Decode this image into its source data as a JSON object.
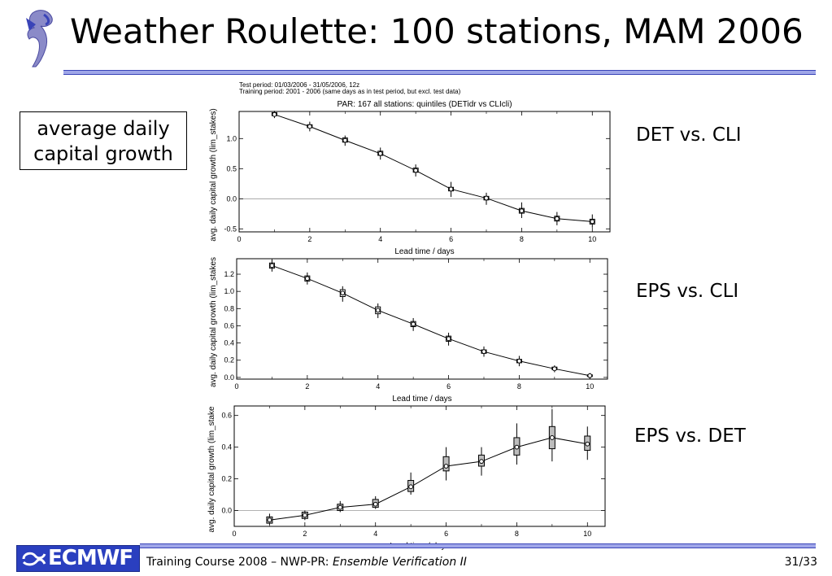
{
  "slide": {
    "title": "Weather Roulette: 100 stations, MAM 2006",
    "note_line1": "average daily",
    "note_line2": "capital growth",
    "label_det_cli": "DET vs. CLI",
    "label_eps_cli": "EPS vs. CLI",
    "label_eps_det": "EPS vs. DET"
  },
  "header": {
    "test_period": "Test period: 01/03/2006 - 31/05/2006, 12z",
    "training_period": "Training period: 2001 - 2006 (same days as in test period, but excl. test data)"
  },
  "footer": {
    "logo_text": "ECMWF",
    "course_text": "Training Course 2008 – NWP-PR: ",
    "course_italic": "Ensemble Verification II",
    "page": "31/33"
  },
  "colors": {
    "rule": "#9fa6e8",
    "rule_border": "#3a44b8",
    "logo_bg": "#2a3fbf"
  },
  "chart_data": [
    {
      "type": "line",
      "title": "PAR: 167 all stations: quintiles (DETidr vs CLIcli)",
      "xlabel": "Lead time / days",
      "ylabel": "avg. daily capital growth (lim_stakes)",
      "xlim": [
        0,
        10.5
      ],
      "ylim": [
        -0.55,
        1.45
      ],
      "xticks": [
        0,
        2,
        4,
        6,
        8,
        10
      ],
      "yticks": [
        -0.5,
        0.0,
        0.5,
        1.0
      ],
      "ytick_labels": [
        "-0.5",
        "0.0",
        "0.5",
        "1.0"
      ],
      "zero_line": true,
      "x": [
        1,
        2,
        3,
        4,
        5,
        6,
        7,
        8,
        9,
        10
      ],
      "y": [
        1.4,
        1.2,
        0.97,
        0.75,
        0.47,
        0.16,
        0.01,
        -0.2,
        -0.33,
        -0.38
      ],
      "err_low": [
        1.34,
        1.12,
        0.88,
        0.65,
        0.37,
        0.03,
        -0.1,
        -0.32,
        -0.44,
        -0.48
      ],
      "err_high": [
        1.46,
        1.28,
        1.05,
        0.85,
        0.57,
        0.28,
        0.1,
        -0.06,
        -0.22,
        -0.26
      ],
      "box_low": [
        1.38,
        1.18,
        0.94,
        0.72,
        0.44,
        0.13,
        -0.02,
        -0.24,
        -0.37,
        -0.42
      ],
      "box_high": [
        1.43,
        1.23,
        1.01,
        0.79,
        0.51,
        0.19,
        0.04,
        -0.16,
        -0.29,
        -0.34
      ]
    },
    {
      "type": "line",
      "title": "",
      "xlabel": "Lead time / days",
      "ylabel": "avg. daily capital growth (lim_stakes",
      "xlim": [
        0,
        10.5
      ],
      "ylim": [
        -0.02,
        1.38
      ],
      "xticks": [
        0,
        2,
        4,
        6,
        8,
        10
      ],
      "yticks": [
        0.0,
        0.2,
        0.4,
        0.6,
        0.8,
        1.0,
        1.2
      ],
      "ytick_labels": [
        "0.0",
        "0.2",
        "0.4",
        "0.6",
        "0.8",
        "1.0",
        "1.2"
      ],
      "zero_line": false,
      "x": [
        1,
        2,
        3,
        4,
        5,
        6,
        7,
        8,
        9,
        10
      ],
      "y": [
        1.3,
        1.15,
        0.98,
        0.78,
        0.62,
        0.45,
        0.3,
        0.19,
        0.1,
        0.02
      ],
      "err_low": [
        1.23,
        1.08,
        0.88,
        0.69,
        0.54,
        0.37,
        0.24,
        0.13,
        0.06,
        -0.01
      ],
      "err_high": [
        1.37,
        1.22,
        1.06,
        0.86,
        0.69,
        0.52,
        0.36,
        0.25,
        0.14,
        0.05
      ],
      "box_low": [
        1.27,
        1.12,
        0.94,
        0.74,
        0.59,
        0.42,
        0.28,
        0.17,
        0.09,
        0.01
      ],
      "box_high": [
        1.33,
        1.18,
        1.02,
        0.82,
        0.65,
        0.48,
        0.32,
        0.21,
        0.12,
        0.03
      ]
    },
    {
      "type": "line",
      "title": "",
      "xlabel": "Lead time / days",
      "ylabel": "avg. daily capital growth (lim_stake",
      "xlim": [
        0,
        10.5
      ],
      "ylim": [
        -0.1,
        0.66
      ],
      "xticks": [
        0,
        2,
        4,
        6,
        8,
        10
      ],
      "yticks": [
        0.0,
        0.2,
        0.4,
        0.6
      ],
      "ytick_labels": [
        "0.0",
        "0.2",
        "0.4",
        "0.6"
      ],
      "zero_line": true,
      "x": [
        1,
        2,
        3,
        4,
        5,
        6,
        7,
        8,
        9,
        10
      ],
      "y": [
        -0.06,
        -0.03,
        0.02,
        0.04,
        0.15,
        0.28,
        0.31,
        0.4,
        0.46,
        0.42
      ],
      "err_low": [
        -0.09,
        -0.06,
        -0.01,
        0.01,
        0.1,
        0.19,
        0.22,
        0.29,
        0.31,
        0.32
      ],
      "err_high": [
        -0.02,
        0.0,
        0.06,
        0.09,
        0.24,
        0.4,
        0.4,
        0.55,
        0.64,
        0.53
      ],
      "box_low": [
        -0.08,
        -0.05,
        0.0,
        0.02,
        0.12,
        0.25,
        0.28,
        0.35,
        0.39,
        0.38
      ],
      "box_high": [
        -0.04,
        -0.01,
        0.04,
        0.07,
        0.19,
        0.34,
        0.35,
        0.46,
        0.53,
        0.47
      ]
    }
  ]
}
